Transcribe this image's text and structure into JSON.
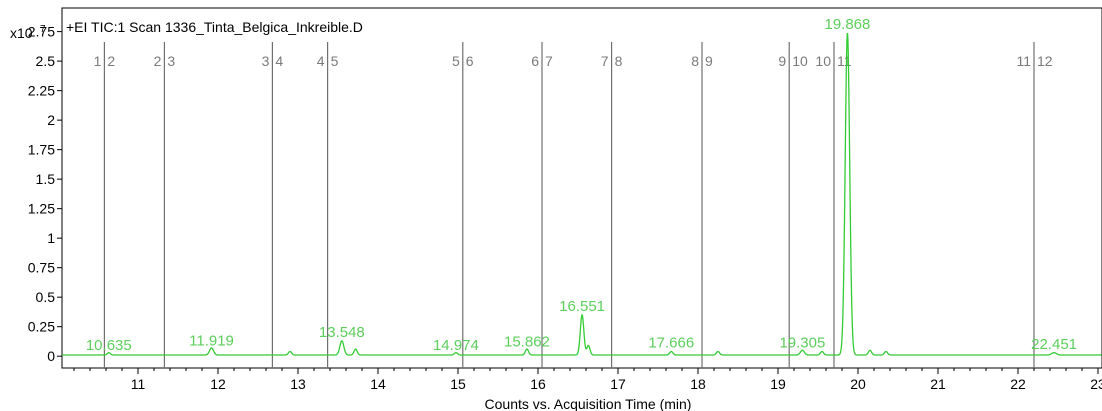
{
  "chart_data": {
    "type": "line",
    "title": "+EI TIC:1  Scan 1336_Tinta_Belgica_Inkreible.D",
    "y_multiplier": "x10",
    "y_exponent": "7",
    "xlabel": "Counts vs. Acquisition Time (min)",
    "ylabel": "",
    "xlim": [
      10.05,
      23.05
    ],
    "ylim": [
      -0.1,
      2.95
    ],
    "x_ticks": [
      11,
      12,
      13,
      14,
      15,
      16,
      17,
      18,
      19,
      20,
      21,
      22,
      23
    ],
    "y_ticks": [
      0,
      0.25,
      0.5,
      0.75,
      1,
      1.25,
      1.5,
      1.75,
      2,
      2.25,
      2.5,
      2.75
    ],
    "y_tick_labels": [
      "0",
      "0.25",
      "0.5",
      "0.75",
      "1",
      "1.25",
      "1.5",
      "1.75",
      "2",
      "2.25",
      "2.5",
      "2.75"
    ],
    "x_tick_labels": [
      "11",
      "12",
      "13",
      "14",
      "15",
      "16",
      "17",
      "18",
      "19",
      "20",
      "21",
      "22",
      "23"
    ],
    "grid": false,
    "line_color": "#33cc33",
    "label_color": "#5ccf5c",
    "marker_color": "#707070",
    "segment_markers": [
      {
        "x": 10.58,
        "labels": [
          "1",
          "2"
        ]
      },
      {
        "x": 11.33,
        "labels": [
          "2",
          "3"
        ]
      },
      {
        "x": 12.68,
        "labels": [
          "3",
          "4"
        ]
      },
      {
        "x": 13.37,
        "labels": [
          "4",
          "5"
        ]
      },
      {
        "x": 15.06,
        "labels": [
          "5",
          "6"
        ]
      },
      {
        "x": 16.05,
        "labels": [
          "6",
          "7"
        ]
      },
      {
        "x": 16.92,
        "labels": [
          "7",
          "8"
        ]
      },
      {
        "x": 18.05,
        "labels": [
          "8",
          "9"
        ]
      },
      {
        "x": 19.14,
        "labels": [
          "9",
          "10"
        ]
      },
      {
        "x": 19.7,
        "labels": [
          "10",
          "11"
        ]
      },
      {
        "x": 22.2,
        "labels": [
          "11",
          "12"
        ]
      }
    ],
    "peak_labels": [
      {
        "x": 10.635,
        "y": 0.01,
        "text": "10.635"
      },
      {
        "x": 11.919,
        "y": 0.05,
        "text": "11.919"
      },
      {
        "x": 13.548,
        "y": 0.12,
        "text": "13.548"
      },
      {
        "x": 14.974,
        "y": 0.01,
        "text": "14.974"
      },
      {
        "x": 15.862,
        "y": 0.04,
        "text": "15.862"
      },
      {
        "x": 16.551,
        "y": 0.34,
        "text": "16.551"
      },
      {
        "x": 17.666,
        "y": 0.03,
        "text": "17.666"
      },
      {
        "x": 19.305,
        "y": 0.03,
        "text": "19.305"
      },
      {
        "x": 19.868,
        "y": 2.73,
        "text": "19.868"
      },
      {
        "x": 22.451,
        "y": 0.02,
        "text": "22.451"
      }
    ],
    "series": [
      {
        "baseline": 0.01,
        "peaks": [
          {
            "x": 10.635,
            "h": 0.02,
            "w": 0.02
          },
          {
            "x": 11.919,
            "h": 0.06,
            "w": 0.025
          },
          {
            "x": 12.9,
            "h": 0.03,
            "w": 0.02
          },
          {
            "x": 13.548,
            "h": 0.12,
            "w": 0.025
          },
          {
            "x": 13.72,
            "h": 0.05,
            "w": 0.02
          },
          {
            "x": 14.974,
            "h": 0.02,
            "w": 0.02
          },
          {
            "x": 15.862,
            "h": 0.05,
            "w": 0.02
          },
          {
            "x": 16.551,
            "h": 0.34,
            "w": 0.022
          },
          {
            "x": 16.63,
            "h": 0.08,
            "w": 0.02
          },
          {
            "x": 17.666,
            "h": 0.03,
            "w": 0.02
          },
          {
            "x": 18.25,
            "h": 0.03,
            "w": 0.02
          },
          {
            "x": 19.305,
            "h": 0.04,
            "w": 0.025
          },
          {
            "x": 19.55,
            "h": 0.03,
            "w": 0.02
          },
          {
            "x": 19.868,
            "h": 2.73,
            "w": 0.028
          },
          {
            "x": 20.15,
            "h": 0.04,
            "w": 0.02
          },
          {
            "x": 20.35,
            "h": 0.03,
            "w": 0.02
          },
          {
            "x": 22.451,
            "h": 0.02,
            "w": 0.03
          }
        ]
      }
    ]
  }
}
